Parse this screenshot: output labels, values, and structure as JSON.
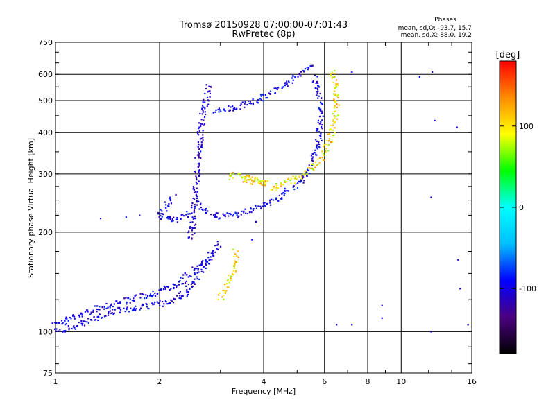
{
  "chart_data": {
    "type": "scatter",
    "title": "Tromsø 20150928 07:00:00-07:01:43",
    "subtitle": "RwPretec (8p)",
    "xlabel": "Frequency [MHz]",
    "ylabel": "Stationary phase Virtual Height [km]",
    "x_scale": "log",
    "y_scale": "log",
    "xlim": [
      1,
      16
    ],
    "ylim": [
      75,
      750
    ],
    "x_ticks": [
      1,
      2,
      4,
      6,
      8,
      10,
      16
    ],
    "x_tick_labels": [
      "1",
      "2",
      "4",
      "6",
      "8",
      "10",
      "16"
    ],
    "x_grid": [
      1,
      2,
      4,
      6,
      8,
      10,
      16
    ],
    "x_minor_ticks": [
      3,
      5,
      7,
      9,
      12,
      14
    ],
    "y_ticks": [
      75,
      100,
      200,
      300,
      400,
      500,
      600,
      750
    ],
    "y_tick_labels": [
      "75",
      "100",
      "200",
      "300",
      "400",
      "500",
      "600",
      "750"
    ],
    "y_grid": [
      100,
      200,
      300,
      400,
      500,
      600
    ],
    "grid": true,
    "legend_title": "Phases",
    "legend_lines": [
      "mean, sd,O: -93.7, 15.7",
      "mean, sd,X:  88.0, 19.2"
    ],
    "colorbar": {
      "label": "[deg]",
      "range": [
        -180,
        180
      ],
      "ticks": [
        100,
        0,
        -100
      ],
      "tick_labels": [
        "100",
        "0",
        "-100"
      ],
      "colors": [
        "#000000",
        "#4b0082",
        "#0000ff",
        "#00bfff",
        "#00ffff",
        "#00ff00",
        "#ffff00",
        "#ff8c00",
        "#ff0000"
      ]
    },
    "traces": [
      {
        "name": "",
        "phase": -100,
        "points": [
          [
            1.0,
            108
          ],
          [
            1.05,
            106
          ],
          [
            1.1,
            110
          ],
          [
            1.2,
            113
          ],
          [
            1.3,
            117
          ],
          [
            1.4,
            120
          ],
          [
            1.5,
            122
          ],
          [
            1.6,
            124
          ],
          [
            1.7,
            126
          ],
          [
            1.8,
            128
          ],
          [
            1.9,
            130
          ],
          [
            2.0,
            133
          ],
          [
            2.1,
            135
          ],
          [
            2.2,
            137
          ],
          [
            2.3,
            142
          ],
          [
            2.4,
            147
          ],
          [
            2.5,
            152
          ],
          [
            2.6,
            158
          ],
          [
            2.7,
            164
          ],
          [
            2.8,
            170
          ],
          [
            2.9,
            178
          ],
          [
            3.0,
            185
          ]
        ]
      },
      {
        "name": "",
        "phase": -100,
        "points": [
          [
            1.0,
            100
          ],
          [
            1.1,
            103
          ],
          [
            1.2,
            106
          ],
          [
            1.3,
            110
          ],
          [
            1.4,
            113
          ],
          [
            1.5,
            115
          ],
          [
            1.6,
            117
          ],
          [
            1.7,
            118
          ],
          [
            1.8,
            119
          ],
          [
            1.9,
            120
          ],
          [
            2.0,
            121
          ],
          [
            2.1,
            123
          ],
          [
            2.2,
            125
          ],
          [
            2.3,
            128
          ],
          [
            2.4,
            132
          ],
          [
            2.5,
            140
          ],
          [
            2.6,
            150
          ],
          [
            2.7,
            160
          ],
          [
            2.8,
            168
          ]
        ]
      },
      {
        "name": "",
        "phase": -110,
        "points": [
          [
            2.45,
            190
          ],
          [
            2.5,
            210
          ],
          [
            2.52,
            240
          ],
          [
            2.55,
            280
          ],
          [
            2.58,
            320
          ],
          [
            2.6,
            360
          ],
          [
            2.63,
            400
          ],
          [
            2.66,
            440
          ],
          [
            2.7,
            480
          ],
          [
            2.74,
            520
          ],
          [
            2.8,
            560
          ]
        ]
      },
      {
        "name": "",
        "phase": -100,
        "points": [
          [
            2.58,
            245
          ],
          [
            2.7,
            232
          ],
          [
            2.9,
            225
          ],
          [
            3.1,
            223
          ],
          [
            3.3,
            225
          ],
          [
            3.6,
            232
          ],
          [
            4.0,
            242
          ],
          [
            4.4,
            255
          ],
          [
            4.8,
            270
          ],
          [
            5.2,
            290
          ],
          [
            5.5,
            320
          ],
          [
            5.7,
            360
          ],
          [
            5.8,
            400
          ],
          [
            5.85,
            450
          ],
          [
            5.8,
            500
          ],
          [
            5.7,
            550
          ],
          [
            5.6,
            590
          ]
        ]
      },
      {
        "name": "",
        "phase": -100,
        "points": [
          [
            2.2,
            255
          ],
          [
            2.1,
            240
          ],
          [
            2.0,
            228
          ],
          [
            2.05,
            220
          ],
          [
            2.15,
            218
          ],
          [
            2.3,
            220
          ],
          [
            2.4,
            225
          ],
          [
            2.45,
            230
          ]
        ]
      },
      {
        "name": "",
        "phase": -100,
        "points": [
          [
            2.9,
            460
          ],
          [
            3.2,
            470
          ],
          [
            3.5,
            485
          ],
          [
            3.8,
            500
          ],
          [
            4.1,
            520
          ],
          [
            4.4,
            545
          ],
          [
            4.7,
            570
          ],
          [
            5.0,
            595
          ],
          [
            5.3,
            620
          ],
          [
            5.6,
            640
          ]
        ]
      },
      {
        "name": "",
        "phase": 100,
        "points": [
          [
            4.2,
            270
          ],
          [
            4.6,
            280
          ],
          [
            5.0,
            292
          ],
          [
            5.4,
            308
          ],
          [
            5.8,
            330
          ],
          [
            6.1,
            360
          ],
          [
            6.3,
            400
          ],
          [
            6.45,
            450
          ],
          [
            6.5,
            500
          ],
          [
            6.45,
            560
          ],
          [
            6.3,
            620
          ]
        ]
      },
      {
        "name": "",
        "phase": 100,
        "points": [
          [
            3.5,
            290
          ],
          [
            3.7,
            285
          ],
          [
            3.9,
            282
          ],
          [
            4.1,
            280
          ],
          [
            3.3,
            300
          ],
          [
            3.2,
            290
          ]
        ]
      },
      {
        "name": "",
        "phase": 100,
        "points": [
          [
            3.0,
            125
          ],
          [
            3.1,
            135
          ],
          [
            3.2,
            145
          ],
          [
            3.3,
            155
          ],
          [
            3.35,
            165
          ],
          [
            3.3,
            175
          ]
        ]
      },
      {
        "name": "",
        "phase": -100,
        "points": [
          [
            1.35,
            220
          ],
          [
            1.6,
            222
          ],
          [
            1.75,
            225
          ],
          [
            3.7,
            190
          ],
          [
            3.8,
            215
          ],
          [
            6.5,
            105
          ],
          [
            7.2,
            105
          ],
          [
            7.2,
            610
          ],
          [
            8.8,
            120
          ],
          [
            8.8,
            110
          ],
          [
            11.3,
            590
          ],
          [
            12.3,
            610
          ],
          [
            12.5,
            435
          ],
          [
            12.2,
            255
          ],
          [
            12.2,
            100
          ],
          [
            14.5,
            415
          ],
          [
            14.6,
            165
          ],
          [
            14.8,
            135
          ],
          [
            15.6,
            105
          ]
        ]
      }
    ]
  }
}
